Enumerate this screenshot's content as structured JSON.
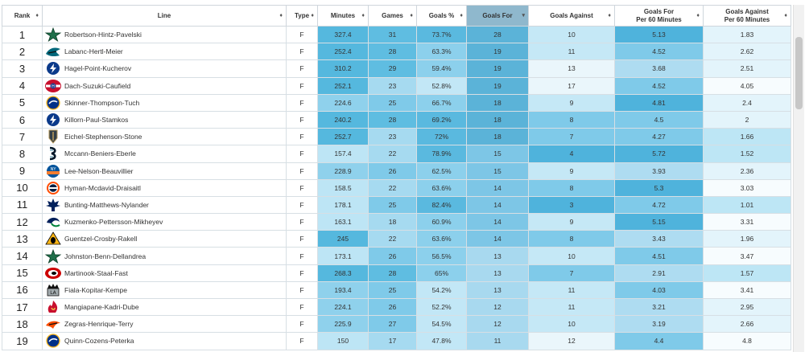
{
  "headers": {
    "rank": "Rank",
    "line": "Line",
    "type": "Type",
    "minutes": "Minutes",
    "games": "Games",
    "goals_pct": "Goals %",
    "goals_for": "Goals For",
    "goals_against": "Goals Against",
    "gf60_l1": "Goals For",
    "gf60_l2": "Per 60 Minutes",
    "ga60_l1": "Goals Against",
    "ga60_l2": "Per 60 Minutes",
    "sort_symbol": "♦",
    "sort_active_symbol": "▾"
  },
  "colors": {
    "minutes": [
      "#55b8de",
      "#8fd1ec",
      "#bde5f5"
    ],
    "games": [
      "#5fbde1",
      "#7fcae9",
      "#a6daf0"
    ],
    "goals_pct": [
      "#5ab9df",
      "#8cd0ec",
      "#c2e7f6"
    ],
    "goals_for": [
      "#5bb3d8",
      "#7dc6e6",
      "#a8d9ef"
    ],
    "goals_against": [
      "#4fb3dc",
      "#7fcae9",
      "#c5e8f6",
      "#eaf6fb"
    ],
    "gf60": [
      "#4fb3dc",
      "#7fcae9",
      "#aedcf1"
    ],
    "ga60": [
      "#bde6f5",
      "#e3f4fb",
      "#f7fcfe"
    ]
  },
  "rows": [
    {
      "rank": "1",
      "logo": "stars-icon",
      "line": "Robertson-Hintz-Pavelski",
      "type": "F",
      "minutes": "327.4",
      "games": "31",
      "goals_pct": "73.7%",
      "goals_for": "28",
      "goals_against": "10",
      "gf60": "5.13",
      "ga60": "1.83"
    },
    {
      "rank": "2",
      "logo": "sharks-icon",
      "line": "Labanc-Hertl-Meier",
      "type": "F",
      "minutes": "252.4",
      "games": "28",
      "goals_pct": "63.3%",
      "goals_for": "19",
      "goals_against": "11",
      "gf60": "4.52",
      "ga60": "2.62"
    },
    {
      "rank": "3",
      "logo": "lightning-icon",
      "line": "Hagel-Point-Kucherov",
      "type": "F",
      "minutes": "310.2",
      "games": "29",
      "goals_pct": "59.4%",
      "goals_for": "19",
      "goals_against": "13",
      "gf60": "3.68",
      "ga60": "2.51"
    },
    {
      "rank": "4",
      "logo": "canadiens-icon",
      "line": "Dach-Suzuki-Caufield",
      "type": "F",
      "minutes": "252.1",
      "games": "23",
      "goals_pct": "52.8%",
      "goals_for": "19",
      "goals_against": "17",
      "gf60": "4.52",
      "ga60": "4.05"
    },
    {
      "rank": "5",
      "logo": "sabres-icon",
      "line": "Skinner-Thompson-Tuch",
      "type": "F",
      "minutes": "224.6",
      "games": "25",
      "goals_pct": "66.7%",
      "goals_for": "18",
      "goals_against": "9",
      "gf60": "4.81",
      "ga60": "2.4"
    },
    {
      "rank": "6",
      "logo": "lightning-icon",
      "line": "Killorn-Paul-Stamkos",
      "type": "F",
      "minutes": "240.2",
      "games": "28",
      "goals_pct": "69.2%",
      "goals_for": "18",
      "goals_against": "8",
      "gf60": "4.5",
      "ga60": "2"
    },
    {
      "rank": "7",
      "logo": "golden-knights-icon",
      "line": "Eichel-Stephenson-Stone",
      "type": "F",
      "minutes": "252.7",
      "games": "23",
      "goals_pct": "72%",
      "goals_for": "18",
      "goals_against": "7",
      "gf60": "4.27",
      "ga60": "1.66"
    },
    {
      "rank": "8",
      "logo": "kraken-icon",
      "line": "Mccann-Beniers-Eberle",
      "type": "F",
      "minutes": "157.4",
      "games": "22",
      "goals_pct": "78.9%",
      "goals_for": "15",
      "goals_against": "4",
      "gf60": "5.72",
      "ga60": "1.52"
    },
    {
      "rank": "9",
      "logo": "islanders-icon",
      "line": "Lee-Nelson-Beauvillier",
      "type": "F",
      "minutes": "228.9",
      "games": "26",
      "goals_pct": "62.5%",
      "goals_for": "15",
      "goals_against": "9",
      "gf60": "3.93",
      "ga60": "2.36"
    },
    {
      "rank": "10",
      "logo": "oilers-icon",
      "line": "Hyman-Mcdavid-Draisaitl",
      "type": "F",
      "minutes": "158.5",
      "games": "22",
      "goals_pct": "63.6%",
      "goals_for": "14",
      "goals_against": "8",
      "gf60": "5.3",
      "ga60": "3.03"
    },
    {
      "rank": "11",
      "logo": "maple-leafs-icon",
      "line": "Bunting-Matthews-Nylander",
      "type": "F",
      "minutes": "178.1",
      "games": "25",
      "goals_pct": "82.4%",
      "goals_for": "14",
      "goals_against": "3",
      "gf60": "4.72",
      "ga60": "1.01"
    },
    {
      "rank": "12",
      "logo": "canucks-icon",
      "line": "Kuzmenko-Pettersson-Mikheyev",
      "type": "F",
      "minutes": "163.1",
      "games": "18",
      "goals_pct": "60.9%",
      "goals_for": "14",
      "goals_against": "9",
      "gf60": "5.15",
      "ga60": "3.31"
    },
    {
      "rank": "13",
      "logo": "penguins-icon",
      "line": "Guentzel-Crosby-Rakell",
      "type": "F",
      "minutes": "245",
      "games": "22",
      "goals_pct": "63.6%",
      "goals_for": "14",
      "goals_against": "8",
      "gf60": "3.43",
      "ga60": "1.96"
    },
    {
      "rank": "14",
      "logo": "stars-icon",
      "line": "Johnston-Benn-Dellandrea",
      "type": "F",
      "minutes": "173.1",
      "games": "26",
      "goals_pct": "56.5%",
      "goals_for": "13",
      "goals_against": "10",
      "gf60": "4.51",
      "ga60": "3.47"
    },
    {
      "rank": "15",
      "logo": "hurricanes-icon",
      "line": "Martinook-Staal-Fast",
      "type": "F",
      "minutes": "268.3",
      "games": "28",
      "goals_pct": "65%",
      "goals_for": "13",
      "goals_against": "7",
      "gf60": "2.91",
      "ga60": "1.57"
    },
    {
      "rank": "16",
      "logo": "kings-icon",
      "line": "Fiala-Kopitar-Kempe",
      "type": "F",
      "minutes": "193.4",
      "games": "25",
      "goals_pct": "54.2%",
      "goals_for": "13",
      "goals_against": "11",
      "gf60": "4.03",
      "ga60": "3.41"
    },
    {
      "rank": "17",
      "logo": "flames-icon",
      "line": "Mangiapane-Kadri-Dube",
      "type": "F",
      "minutes": "224.1",
      "games": "26",
      "goals_pct": "52.2%",
      "goals_for": "12",
      "goals_against": "11",
      "gf60": "3.21",
      "ga60": "2.95"
    },
    {
      "rank": "18",
      "logo": "ducks-icon",
      "line": "Zegras-Henrique-Terry",
      "type": "F",
      "minutes": "225.9",
      "games": "27",
      "goals_pct": "54.5%",
      "goals_for": "12",
      "goals_against": "10",
      "gf60": "3.19",
      "ga60": "2.66"
    },
    {
      "rank": "19",
      "logo": "sabres-icon",
      "line": "Quinn-Cozens-Peterka",
      "type": "F",
      "minutes": "150",
      "games": "17",
      "goals_pct": "47.8%",
      "goals_for": "11",
      "goals_against": "12",
      "gf60": "4.4",
      "ga60": "4.8"
    }
  ]
}
